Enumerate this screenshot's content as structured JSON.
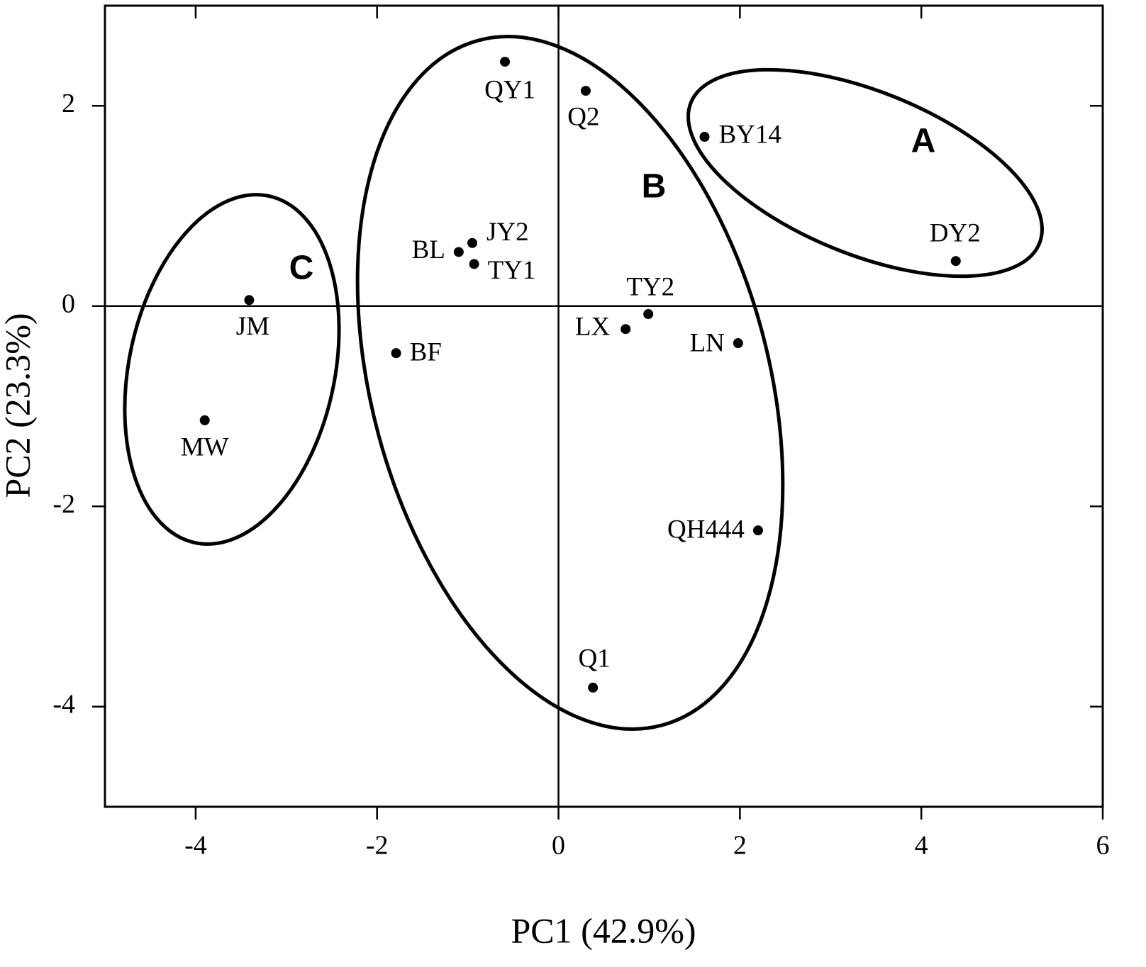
{
  "chart_data": {
    "type": "scatter",
    "xlabel": "PC1 (42.9%)",
    "ylabel": "PC2 (23.3%)",
    "labels": [
      "QY1",
      "Q2",
      "BY14",
      "DY2",
      "JY2",
      "BL",
      "TY1",
      "JM",
      "TY2",
      "LX",
      "LN",
      "BF",
      "MW",
      "QH444",
      "Q1"
    ],
    "x": [
      -0.59,
      0.3,
      1.61,
      4.38,
      -0.95,
      -1.1,
      -0.93,
      -3.41,
      0.99,
      0.74,
      1.98,
      -1.79,
      -3.9,
      2.2,
      0.38
    ],
    "values": [
      2.44,
      2.15,
      1.69,
      0.45,
      0.63,
      0.54,
      0.42,
      0.06,
      -0.08,
      -0.23,
      -0.37,
      -0.47,
      -1.14,
      -2.24,
      -3.81
    ],
    "color": "#000000",
    "annotations": [
      "A",
      "B",
      "C"
    ],
    "xlim": [
      -5,
      6
    ],
    "ylim": [
      -5,
      3
    ],
    "xticks": [
      -4,
      -2,
      0,
      2,
      4,
      6
    ],
    "yticks": [
      -4,
      -2,
      0,
      2
    ],
    "zero_lines": true
  }
}
